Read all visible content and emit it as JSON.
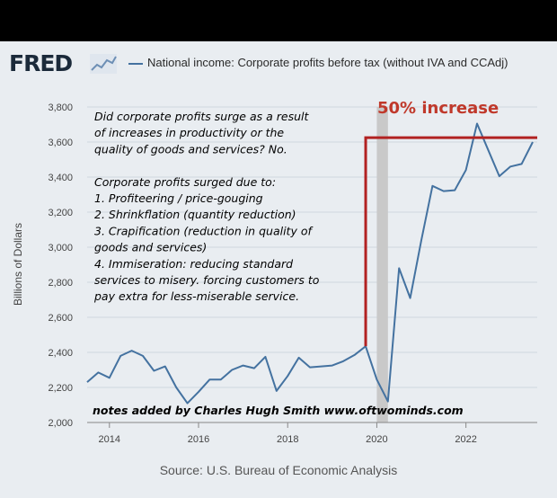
{
  "header": {
    "logo": "FRED",
    "legend_label": "National income: Corporate profits before tax (without IVA and CCAdj)"
  },
  "colors": {
    "line": "#4472a0",
    "annotation": "#b22222",
    "recession": "#c9c9c9",
    "background": "#e9edf1"
  },
  "annotations": {
    "headline": "50% increase",
    "notes": [
      "Did corporate profits surge as a result",
      "of increases in productivity or the",
      "quality of goods and services? No.",
      "",
      "Corporate profits surged due to:",
      "1. Profiteering / price-gouging",
      "2. Shrinkflation (quantity reduction)",
      "3. Crapification (reduction in quality of",
      "goods and services)",
      "4. Immiseration: reducing standard",
      "services to misery. forcing customers to",
      "pay extra for less-miserable service."
    ],
    "credit": "notes added by Charles Hugh Smith   www.oftwominds.com"
  },
  "footer": {
    "source": "Source: U.S. Bureau of Economic Analysis"
  },
  "chart_data": {
    "type": "line",
    "ylabel": "Billions of Dollars",
    "ylim": [
      2000,
      3800
    ],
    "xlim": [
      2013.5,
      2023.6
    ],
    "yticks": [
      2000,
      2200,
      2400,
      2600,
      2800,
      3000,
      3200,
      3400,
      3600,
      3800
    ],
    "ytick_labels": [
      "2,000",
      "2,200",
      "2,400",
      "2,600",
      "2,800",
      "3,000",
      "3,200",
      "3,400",
      "3,600",
      "3,800"
    ],
    "xticks": [
      2014,
      2016,
      2018,
      2020,
      2022
    ],
    "xtick_labels": [
      "2014",
      "2016",
      "2018",
      "2020",
      "2022"
    ],
    "grid": true,
    "recession_band": [
      2020.0,
      2020.25
    ],
    "reference_level": 3625,
    "reference_start": 2019.75,
    "series": [
      {
        "name": "National income: Corporate profits before tax (without IVA and CCAdj)",
        "x": [
          2013.5,
          2013.75,
          2014.0,
          2014.25,
          2014.5,
          2014.75,
          2015.0,
          2015.25,
          2015.5,
          2015.75,
          2016.0,
          2016.25,
          2016.5,
          2016.75,
          2017.0,
          2017.25,
          2017.5,
          2017.75,
          2018.0,
          2018.25,
          2018.5,
          2018.75,
          2019.0,
          2019.25,
          2019.5,
          2019.75,
          2020.0,
          2020.25,
          2020.5,
          2020.75,
          2021.0,
          2021.25,
          2021.5,
          2021.75,
          2022.0,
          2022.25,
          2022.5,
          2022.75,
          2023.0,
          2023.25,
          2023.5
        ],
        "values": [
          2230,
          2285,
          2255,
          2380,
          2410,
          2380,
          2295,
          2320,
          2200,
          2110,
          2175,
          2245,
          2245,
          2300,
          2325,
          2310,
          2375,
          2180,
          2265,
          2370,
          2315,
          2320,
          2325,
          2350,
          2385,
          2435,
          2245,
          2120,
          2880,
          2710,
          3040,
          3350,
          3320,
          3325,
          3440,
          3705,
          3555,
          3405,
          3460,
          3475,
          3600
        ]
      }
    ]
  }
}
